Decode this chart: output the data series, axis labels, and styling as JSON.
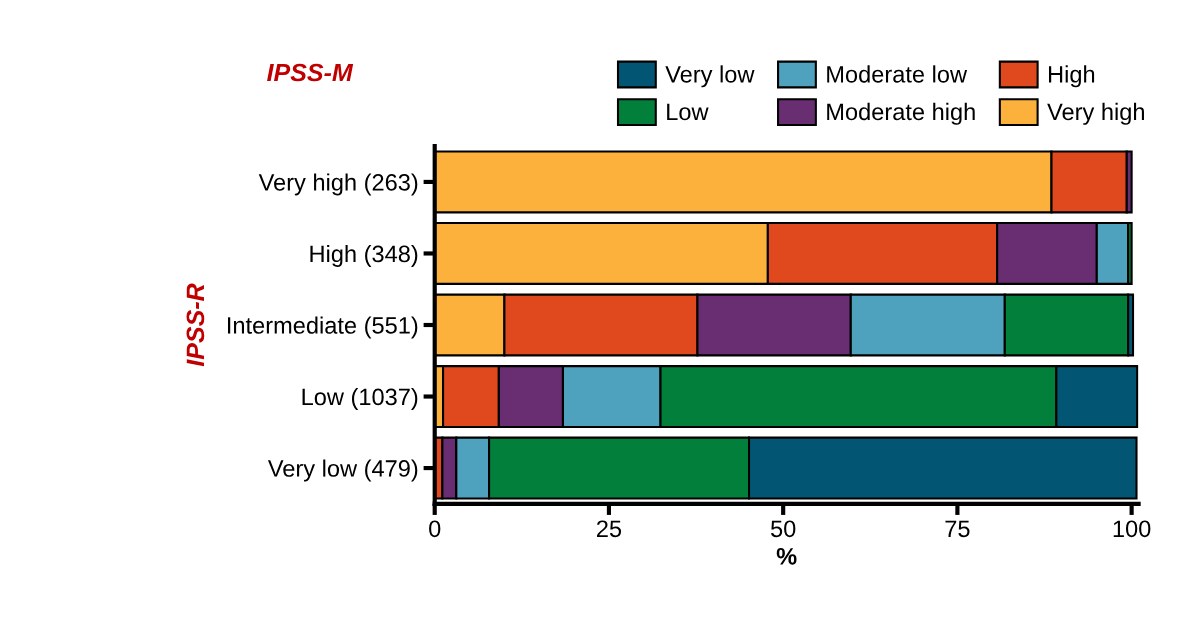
{
  "chart_data": {
    "type": "bar",
    "orientation": "horizontal",
    "stacked": true,
    "categories": [
      "Very high (263)",
      "High (348)",
      "Intermediate (551)",
      "Low (1037)",
      "Very low (479)"
    ],
    "series": [
      {
        "name": "Very high",
        "color": "#fbb13c",
        "values": [
          88.5,
          47.8,
          10.0,
          1.2,
          0
        ]
      },
      {
        "name": "High",
        "color": "#e0491e",
        "values": [
          10.8,
          32.9,
          27.7,
          8.0,
          1.1
        ]
      },
      {
        "name": "Moderate high",
        "color": "#692e72",
        "values": [
          0.7,
          14.3,
          22.0,
          9.2,
          2.0
        ]
      },
      {
        "name": "Moderate low",
        "color": "#4ea2bd",
        "values": [
          0,
          4.5,
          22.1,
          14.0,
          4.7
        ]
      },
      {
        "name": "Low",
        "color": "#02803b",
        "values": [
          0,
          0.5,
          17.7,
          56.8,
          37.3
        ]
      },
      {
        "name": "Very low",
        "color": "#035673",
        "values": [
          0,
          0,
          0.7,
          11.6,
          55.6
        ]
      }
    ],
    "xlim": [
      0,
      101
    ],
    "xticks": [
      0,
      25,
      50,
      75,
      100
    ],
    "xlabel": "%",
    "ylabel": "IPSS-R",
    "legend_title": "IPSS-M",
    "legend": "top",
    "grid": false
  }
}
